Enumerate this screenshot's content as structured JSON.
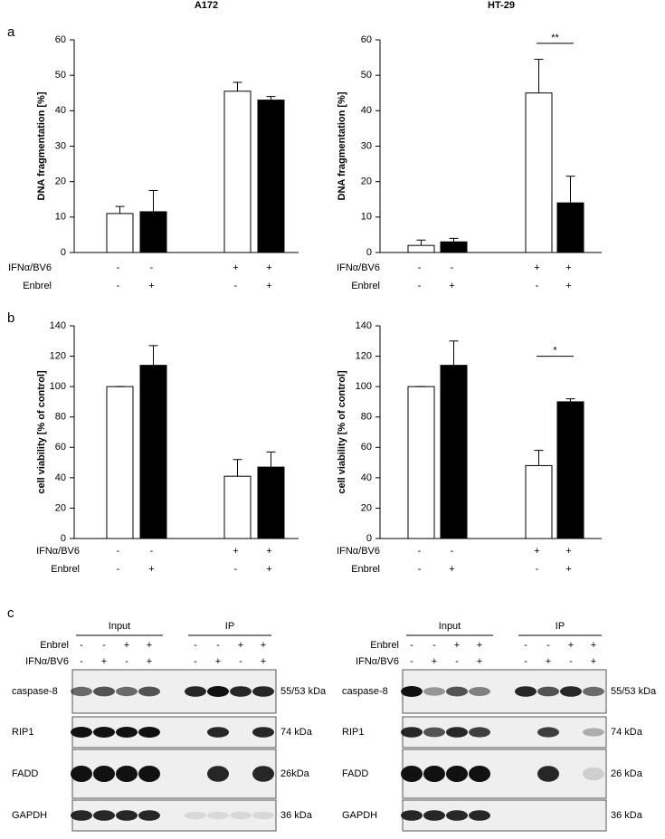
{
  "panels": [
    "a",
    "b",
    "c"
  ],
  "chart_data": [
    {
      "type": "bar",
      "title": "A172",
      "y_label": "DNA fragmentation [%]",
      "conditions": [
        {
          "name": "IFNα/BV6",
          "labels": [
            "-",
            "-",
            "+",
            "+"
          ]
        },
        {
          "name": "Enbrel",
          "labels": [
            "-",
            "+",
            "-",
            "+"
          ]
        }
      ],
      "values": [
        11,
        11.5,
        45.5,
        43
      ],
      "errors": [
        2,
        6,
        2.5,
        1
      ],
      "colors": [
        "#ffffff",
        "#000000",
        "#ffffff",
        "#000000"
      ],
      "ylim": [
        0,
        60
      ],
      "yticks": [
        0,
        10,
        20,
        30,
        40,
        50,
        60
      ]
    },
    {
      "type": "bar",
      "title": "HT-29",
      "y_label": "DNA fragmentation [%]",
      "conditions": [
        {
          "name": "IFNα/BV6",
          "labels": [
            "-",
            "-",
            "+",
            "+"
          ]
        },
        {
          "name": "Enbrel",
          "labels": [
            "-",
            "+",
            "-",
            "+"
          ]
        }
      ],
      "values": [
        2,
        3,
        45,
        14
      ],
      "errors": [
        1.5,
        1,
        9.5,
        7.5
      ],
      "colors": [
        "#ffffff",
        "#000000",
        "#ffffff",
        "#000000"
      ],
      "annotations": [
        {
          "text": "**",
          "y": 59
        }
      ],
      "ylim": [
        0,
        60
      ],
      "yticks": [
        0,
        10,
        20,
        30,
        40,
        50,
        60
      ]
    },
    {
      "type": "bar",
      "y_label": "cell viability [% of control]",
      "conditions": [
        {
          "name": "IFNα/BV6",
          "labels": [
            "-",
            "-",
            "+",
            "+"
          ]
        },
        {
          "name": "Enbrel",
          "labels": [
            "-",
            "+",
            "-",
            "+"
          ]
        }
      ],
      "values": [
        100,
        114,
        41,
        47
      ],
      "errors": [
        0,
        13,
        11,
        10
      ],
      "colors": [
        "#ffffff",
        "#000000",
        "#ffffff",
        "#000000"
      ],
      "ylim": [
        0,
        140
      ],
      "yticks": [
        0,
        20,
        40,
        60,
        80,
        100,
        120,
        140
      ]
    },
    {
      "type": "bar",
      "y_label": "cell viability [% of control]",
      "conditions": [
        {
          "name": "IFNα/BV6",
          "labels": [
            "-",
            "-",
            "+",
            "+"
          ]
        },
        {
          "name": "Enbrel",
          "labels": [
            "-",
            "+",
            "-",
            "+"
          ]
        }
      ],
      "values": [
        100,
        114,
        48,
        90
      ],
      "errors": [
        0,
        16,
        10,
        2
      ],
      "colors": [
        "#ffffff",
        "#000000",
        "#ffffff",
        "#000000"
      ],
      "annotations": [
        {
          "text": "*",
          "y": 120
        }
      ],
      "ylim": [
        0,
        140
      ],
      "yticks": [
        0,
        20,
        40,
        60,
        80,
        100,
        120,
        140
      ]
    }
  ],
  "blots": [
    {
      "groups": [
        "Input",
        "IP"
      ],
      "conditions": [
        {
          "name": "Enbrel",
          "labels": [
            "-",
            "-",
            "+",
            "+",
            "-",
            "-",
            "+",
            "+"
          ]
        },
        {
          "name": "IFNα/BV6",
          "labels": [
            "-",
            "+",
            "-",
            "+",
            "-",
            "+",
            "-",
            "+"
          ]
        }
      ],
      "proteins": [
        {
          "name": "caspase-8",
          "size": "55/53 kDa"
        },
        {
          "name": "RIP1",
          "size": "74 kDa"
        },
        {
          "name": "FADD",
          "size": "26kDa"
        },
        {
          "name": "GAPDH",
          "size": "36 kDa"
        }
      ]
    },
    {
      "groups": [
        "Input",
        "IP"
      ],
      "conditions": [
        {
          "name": "Enbrel",
          "labels": [
            "-",
            "-",
            "+",
            "+",
            "-",
            "-",
            "+",
            "+"
          ]
        },
        {
          "name": "IFNα/BV6",
          "labels": [
            "-",
            "+",
            "-",
            "+",
            "-",
            "+",
            "-",
            "+"
          ]
        }
      ],
      "proteins": [
        {
          "name": "caspase-8",
          "size": "55/53 kDa"
        },
        {
          "name": "RIP1",
          "size": "74 kDa"
        },
        {
          "name": "FADD",
          "size": "26 kDa"
        },
        {
          "name": "GAPDH",
          "size": "36 kDa"
        }
      ]
    }
  ]
}
